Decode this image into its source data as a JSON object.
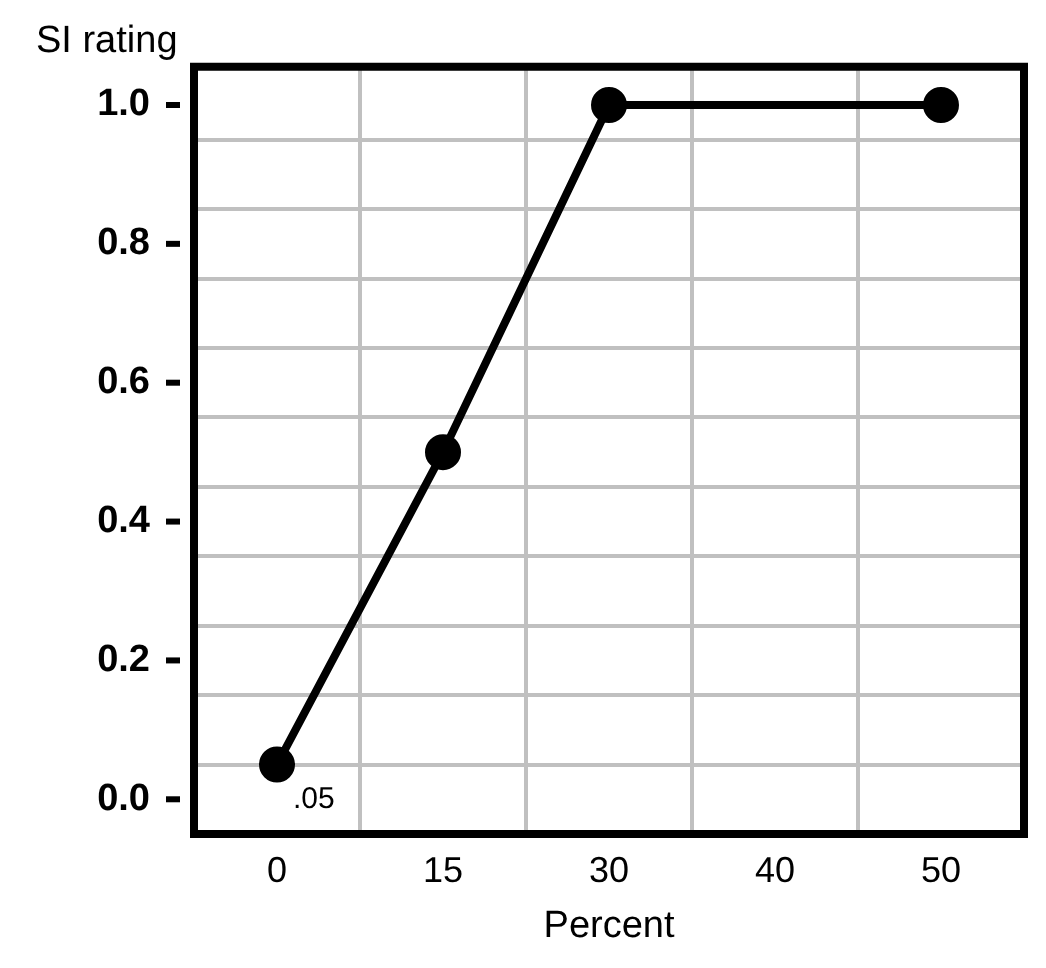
{
  "chart_data": {
    "type": "line",
    "xlabel": "Percent",
    "ylabel": "SI rating",
    "categories": [
      "0",
      "15",
      "30",
      "40",
      "50"
    ],
    "series": [
      {
        "color": "#000000",
        "values": [
          0.05,
          0.5,
          1.0,
          null,
          1.0
        ]
      }
    ],
    "ylim": [
      -0.05,
      1.055
    ],
    "yticks": [
      {
        "value": 0,
        "label": "0.0"
      },
      {
        "value": 0.05,
        "label": null
      },
      0.2,
      {
        "value": 0.15,
        "label": null
      },
      {
        "value": 0.25,
        "label": null
      },
      0.4,
      {
        "value": 0.35,
        "label": null
      },
      {
        "value": 0.45,
        "label": null
      },
      0.6,
      {
        "value": 0.55,
        "label": null
      },
      {
        "value": 0.65,
        "label": null
      },
      0.8,
      {
        "value": 0.75,
        "label": null
      },
      {
        "value": 0.85,
        "label": null
      },
      {
        "value": 1,
        "label": "1.0"
      },
      {
        "value": 0.95,
        "label": null
      }
    ],
    "annotations": [
      {
        "text": ".05",
        "x": "0",
        "y": 0.05
      }
    ],
    "grid": true,
    "legend": false,
    "marker": "circle",
    "line_style": "solid"
  }
}
